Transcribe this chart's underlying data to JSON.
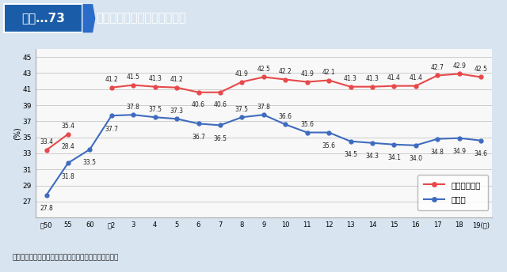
{
  "title_box": "図表…73",
  "title_main": "外食率、食の外部化率の推移",
  "ylabel": "(%)",
  "ylim": [
    25,
    46
  ],
  "yticks": [
    27,
    29,
    31,
    33,
    35,
    37,
    39,
    41,
    43,
    45
  ],
  "x_labels": [
    "昭50",
    "55",
    "60",
    "平2",
    "3",
    "4",
    "5",
    "6",
    "7",
    "8",
    "9",
    "10",
    "11",
    "12",
    "13",
    "14",
    "15",
    "16",
    "17",
    "18",
    "19(年)"
  ],
  "gaishoku_rate": [
    33.4,
    35.4,
    null,
    41.2,
    41.5,
    41.3,
    41.2,
    40.6,
    40.6,
    41.9,
    42.5,
    42.2,
    41.9,
    42.1,
    41.3,
    41.3,
    41.4,
    41.4,
    42.7,
    42.9,
    42.5
  ],
  "gaishoku_labels": [
    "33.4",
    "35.4",
    "",
    "41.2",
    "41.5",
    "41.3",
    "41.2",
    "40.6",
    "40.6",
    "41.9",
    "42.5",
    "42.2",
    "41.9",
    "42.1",
    "41.3",
    "41.3",
    "41.4",
    "41.4",
    "42.7",
    "42.9",
    "42.5"
  ],
  "gaishoku_color": "#e8484a",
  "gaishokuritsu": [
    27.8,
    31.8,
    33.5,
    37.7,
    37.8,
    37.5,
    37.3,
    36.7,
    36.5,
    37.5,
    37.8,
    36.6,
    35.6,
    35.6,
    34.5,
    34.3,
    34.1,
    34.0,
    34.8,
    34.9,
    34.6
  ],
  "gaishokuritsu_labels": [
    "27.8",
    "31.8",
    "33.5",
    "37.7",
    "37.8",
    "37.5",
    "37.3",
    "36.7",
    "36.5",
    "37.5",
    "37.8",
    "36.6",
    "35.6",
    "35.6",
    "34.5",
    "34.3",
    "34.1",
    "34.0",
    "34.8",
    "34.9",
    "34.6"
  ],
  "gaishokuritsu_color": "#3f6bbf",
  "gaishoku28": [
    28.4
  ],
  "note": "資料：（財）外食産業総合調査研究センターによる推計",
  "legend_label1": "食の外部化率",
  "legend_label2": "外食率",
  "header_bg": "#1a5ca8",
  "header_box_bg": "#1a5ca8",
  "outer_bg": "#d8e4f0",
  "inner_bg": "#f0f4f8",
  "plot_bg": "#f8f8f8",
  "bottom_bg": "#d8e4f0"
}
